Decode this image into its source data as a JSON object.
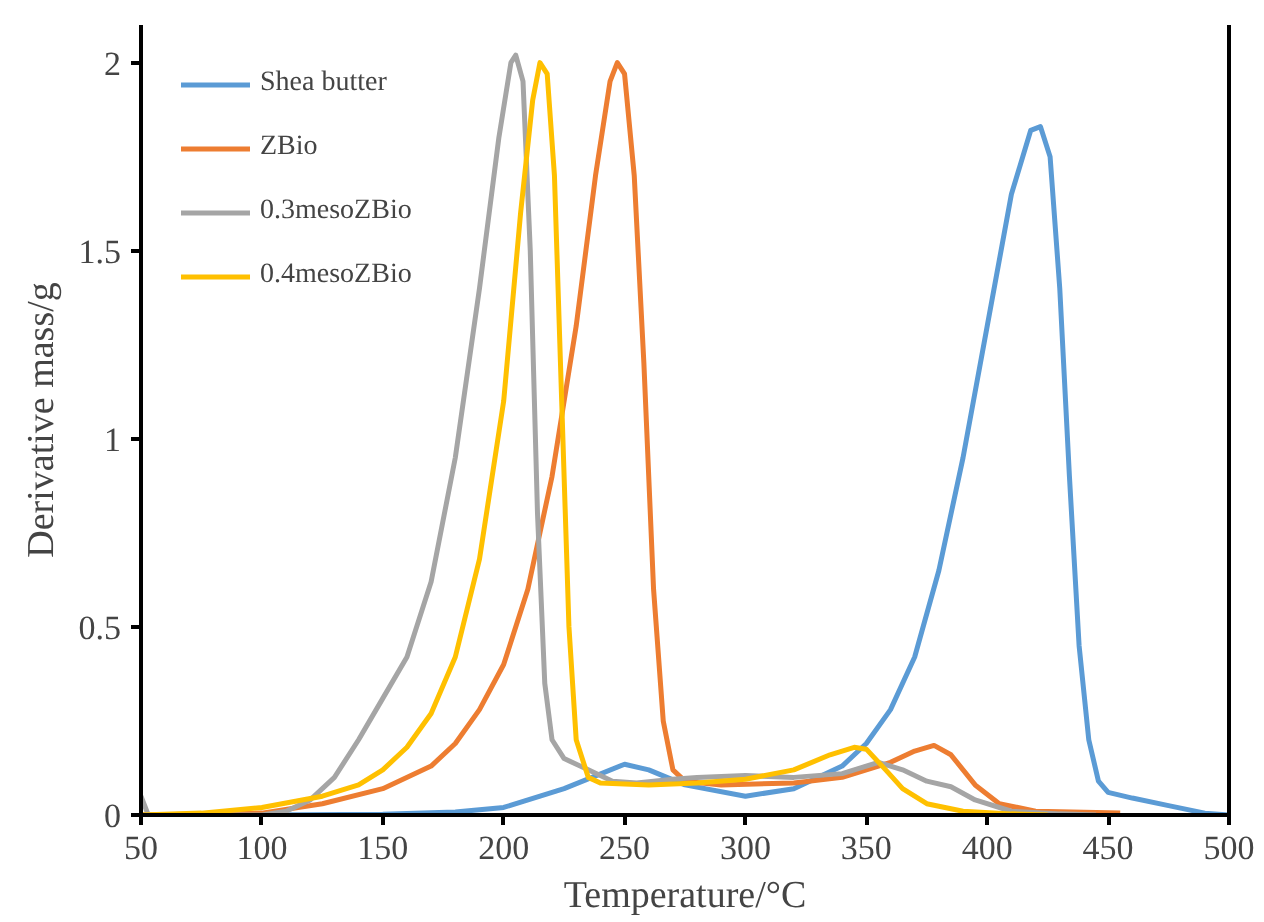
{
  "chart_data": {
    "type": "line",
    "xlabel": "Temperature/°C",
    "ylabel": "Derivative mass/g",
    "xlim": [
      50,
      500
    ],
    "xticks": [
      50,
      100,
      150,
      200,
      250,
      300,
      350,
      400,
      450,
      500
    ],
    "ylim": [
      0,
      2.1
    ],
    "yticks": [
      0,
      0.5,
      1,
      1.5,
      2
    ],
    "grid": false,
    "legend": "top left",
    "marker": "none",
    "line_style": "solid",
    "series": [
      {
        "name": "Shea butter",
        "color": "#5b9bd5",
        "x": [
          50,
          100,
          150,
          180,
          200,
          225,
          250,
          260,
          275,
          300,
          320,
          340,
          350,
          360,
          370,
          380,
          390,
          400,
          410,
          418,
          422,
          426,
          430,
          434,
          438,
          442,
          446,
          450,
          460,
          475,
          490,
          500
        ],
        "values": [
          0,
          0,
          0.002,
          0.008,
          0.02,
          0.07,
          0.135,
          0.12,
          0.08,
          0.05,
          0.07,
          0.13,
          0.19,
          0.28,
          0.42,
          0.65,
          0.95,
          1.3,
          1.65,
          1.82,
          1.83,
          1.75,
          1.4,
          0.9,
          0.45,
          0.2,
          0.09,
          0.06,
          0.045,
          0.025,
          0.005,
          0
        ]
      },
      {
        "name": "ZBio",
        "color": "#ed7d31",
        "x": [
          50,
          100,
          125,
          150,
          170,
          180,
          190,
          200,
          210,
          220,
          230,
          238,
          244,
          247,
          250,
          254,
          258,
          262,
          266,
          270,
          275,
          290,
          320,
          340,
          360,
          370,
          378,
          385,
          395,
          405,
          420,
          455
        ],
        "values": [
          0,
          0.005,
          0.03,
          0.07,
          0.13,
          0.19,
          0.28,
          0.4,
          0.6,
          0.9,
          1.3,
          1.7,
          1.95,
          2.0,
          1.97,
          1.7,
          1.2,
          0.6,
          0.25,
          0.12,
          0.09,
          0.08,
          0.085,
          0.1,
          0.14,
          0.17,
          0.185,
          0.16,
          0.08,
          0.03,
          0.01,
          0.005
        ]
      },
      {
        "name": "0.3mesoZBio",
        "color": "#a5a5a5",
        "x": [
          50,
          53,
          100,
          110,
          120,
          130,
          140,
          150,
          160,
          170,
          180,
          190,
          198,
          203,
          205,
          208,
          211,
          214,
          217,
          220,
          225,
          235,
          245,
          255,
          270,
          280,
          300,
          320,
          340,
          355,
          365,
          375,
          385,
          395,
          410,
          430,
          445
        ],
        "values": [
          0.05,
          0,
          0,
          0.01,
          0.04,
          0.1,
          0.2,
          0.31,
          0.42,
          0.62,
          0.95,
          1.4,
          1.8,
          2.0,
          2.02,
          1.95,
          1.5,
          0.8,
          0.35,
          0.2,
          0.15,
          0.12,
          0.09,
          0.085,
          0.095,
          0.1,
          0.105,
          0.1,
          0.11,
          0.14,
          0.12,
          0.09,
          0.075,
          0.04,
          0.01,
          0.003,
          0
        ]
      },
      {
        "name": "0.4mesoZBio",
        "color": "#ffc000",
        "x": [
          50,
          75,
          100,
          125,
          140,
          150,
          160,
          170,
          180,
          190,
          200,
          207,
          212,
          215,
          218,
          221,
          224,
          227,
          230,
          235,
          240,
          260,
          280,
          300,
          320,
          335,
          345,
          350,
          358,
          365,
          375,
          390,
          410,
          425
        ],
        "values": [
          0,
          0.005,
          0.02,
          0.05,
          0.08,
          0.12,
          0.18,
          0.27,
          0.42,
          0.68,
          1.1,
          1.6,
          1.9,
          2.0,
          1.97,
          1.7,
          1.1,
          0.5,
          0.2,
          0.1,
          0.085,
          0.08,
          0.085,
          0.095,
          0.12,
          0.16,
          0.18,
          0.175,
          0.12,
          0.07,
          0.03,
          0.01,
          0.003,
          0
        ]
      }
    ]
  }
}
